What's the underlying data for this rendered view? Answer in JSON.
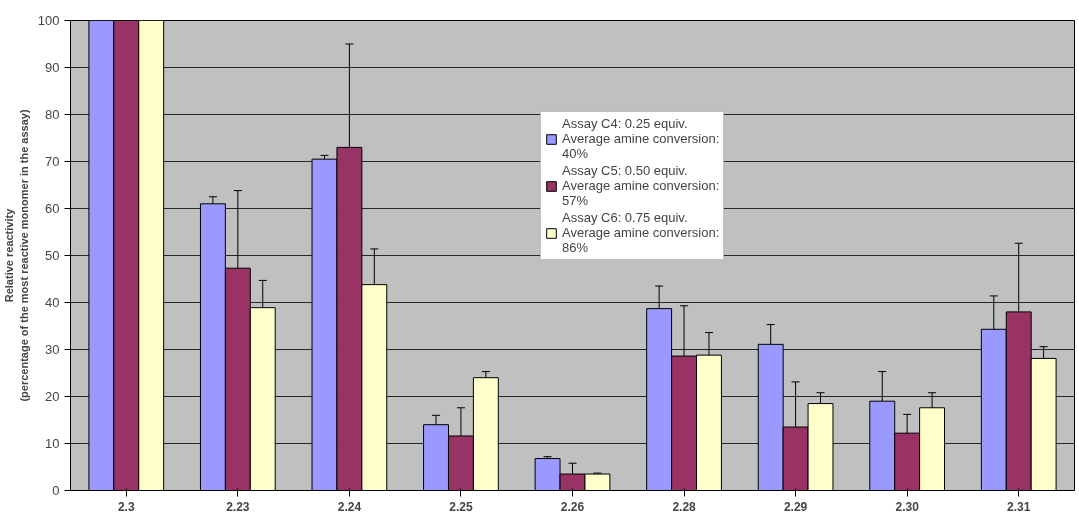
{
  "chart_data": {
    "type": "bar",
    "ylabel": "Relative reactivity\n(percentage of the most reactive monomer in the assay)",
    "categories": [
      "2.3",
      "2.23",
      "2.24",
      "2.25",
      "2.26",
      "2.28",
      "2.29",
      "2.30",
      "2.31"
    ],
    "series": [
      {
        "name": "Assay C4: 0.25 equiv. Average amine conversion: 40%",
        "color": "#9999ff",
        "values": [
          100,
          61,
          70.5,
          14,
          6.8,
          38.7,
          31.1,
          19,
          34.3
        ],
        "errors": [
          0,
          1.5,
          0.8,
          2,
          0.4,
          4.8,
          4.2,
          6.3,
          7.1
        ]
      },
      {
        "name": "Assay C5: 0.50 equiv. Average amine conversion: 57%",
        "color": "#993366",
        "values": [
          100,
          47.3,
          73,
          11.6,
          3.5,
          28.6,
          13.5,
          12.2,
          38
        ],
        "errors": [
          0,
          16.5,
          22,
          6,
          2.3,
          10.7,
          9.6,
          4,
          14.6
        ]
      },
      {
        "name": "Assay C6: 0.75 equiv. Average amine conversion: 86%",
        "color": "#ffffcc",
        "values": [
          100,
          38.9,
          43.8,
          24,
          3.5,
          28.8,
          18.5,
          17.6,
          28.1
        ],
        "errors": [
          0,
          5.8,
          7.6,
          1.3,
          0.2,
          4.8,
          2.3,
          3.2,
          2.5
        ]
      }
    ],
    "ylim": [
      0,
      100
    ],
    "yticks": [
      0,
      10,
      20,
      30,
      40,
      50,
      60,
      70,
      80,
      90,
      100
    ],
    "grid": "y",
    "legend": "top"
  }
}
